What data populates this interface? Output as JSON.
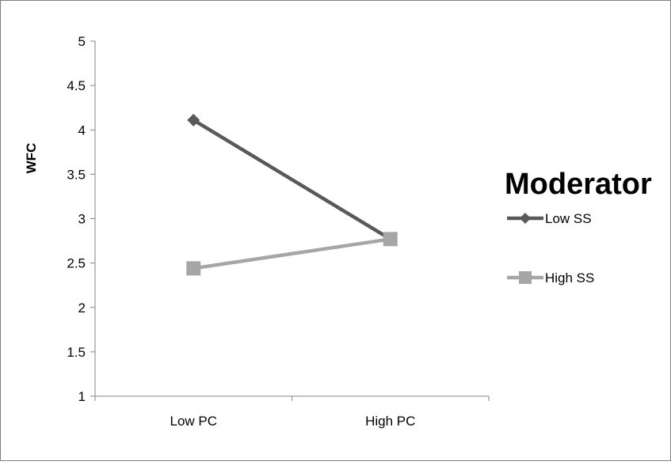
{
  "chart_data": {
    "type": "line",
    "categories": [
      "Low PC",
      "High PC"
    ],
    "series": [
      {
        "name": "Low SS",
        "values": [
          4.11,
          2.77
        ],
        "color": "#595959",
        "marker": "diamond"
      },
      {
        "name": "High SS",
        "values": [
          2.44,
          2.77
        ],
        "color": "#a6a6a6",
        "marker": "square"
      }
    ],
    "ylabel": "WFC",
    "xlabel": "",
    "ylim": [
      1,
      5
    ],
    "yticks": [
      "1",
      "1.5",
      "2",
      "2.5",
      "3",
      "3.5",
      "4",
      "4.5",
      "5"
    ],
    "grid": false,
    "legend": {
      "title": "Moderator",
      "placement": "right"
    }
  }
}
